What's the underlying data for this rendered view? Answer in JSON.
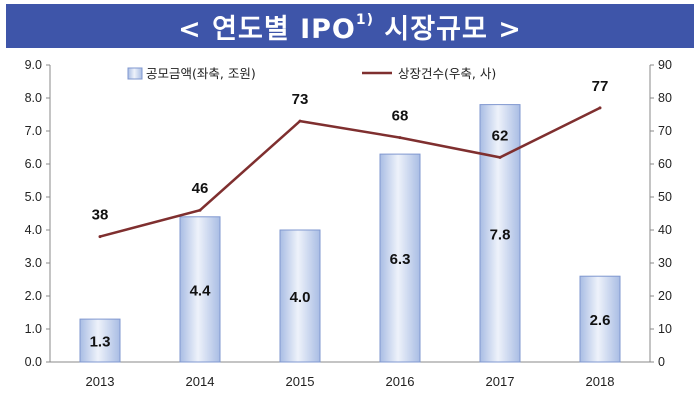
{
  "chart_data": {
    "type": "bar",
    "title_left": "< 연도별 IPO",
    "title_sup": "1)",
    "title_right": " 시장규모 >",
    "categories": [
      "2013",
      "2014",
      "2015",
      "2016",
      "2017",
      "2018"
    ],
    "series": [
      {
        "name": "공모금액(좌축, 조원)",
        "type": "bar",
        "axis": "left",
        "values": [
          1.3,
          4.4,
          4.0,
          6.3,
          7.8,
          2.6
        ],
        "labels": [
          "1.3",
          "4.4",
          "4.0",
          "6.3",
          "7.8",
          "2.6"
        ]
      },
      {
        "name": "상장건수(우축, 사)",
        "type": "line",
        "axis": "right",
        "values": [
          38,
          46,
          73,
          68,
          62,
          77
        ],
        "labels": [
          "38",
          "46",
          "73",
          "68",
          "62",
          "77"
        ]
      }
    ],
    "left_axis": {
      "min": 0,
      "max": 9,
      "ticks": [
        "0.0",
        "1.0",
        "2.0",
        "3.0",
        "4.0",
        "5.0",
        "6.0",
        "7.0",
        "8.0",
        "9.0"
      ]
    },
    "right_axis": {
      "min": 0,
      "max": 90,
      "ticks": [
        "0",
        "10",
        "20",
        "30",
        "40",
        "50",
        "60",
        "70",
        "80",
        "90"
      ]
    },
    "legend_position": "top-center",
    "colors": {
      "banner": "#3e55a9",
      "bar_fill_light": "#eef2fa",
      "bar_fill_dark": "#a9bde4",
      "bar_stroke": "#7f97cf",
      "line": "#7f2f2f"
    }
  }
}
